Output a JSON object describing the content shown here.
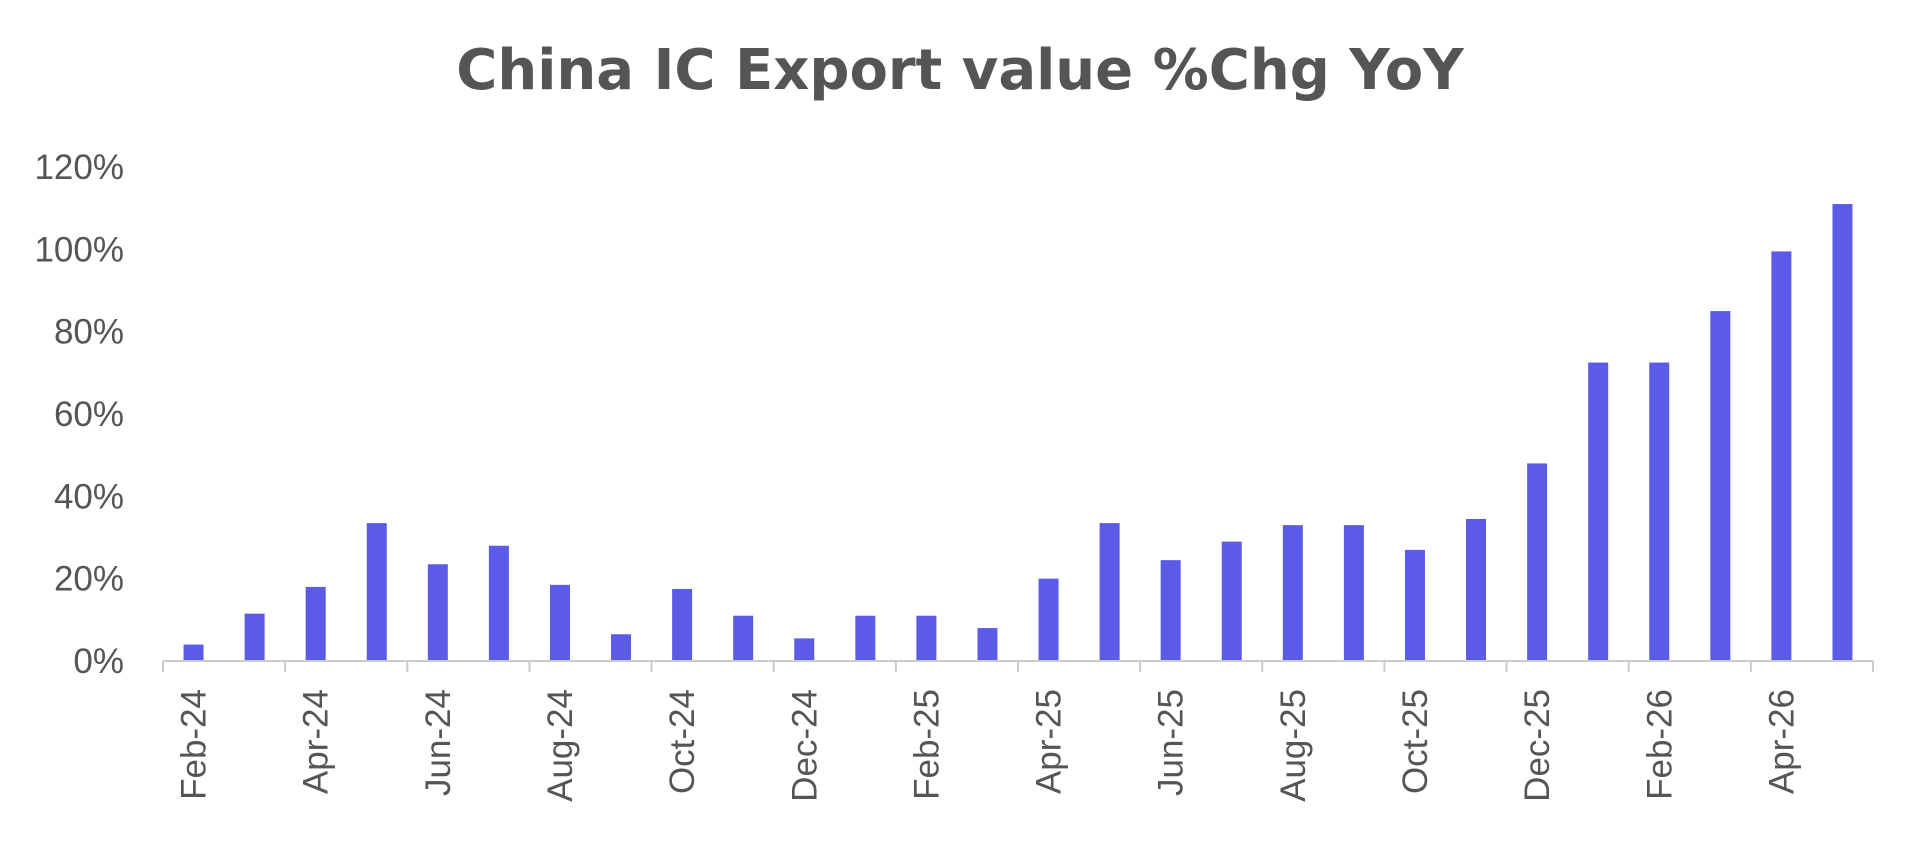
{
  "chart_data": {
    "type": "bar",
    "title": "China IC Export value %Chg YoY",
    "xlabel": "",
    "ylabel": "",
    "ylim": [
      0,
      120
    ],
    "yticks": [
      "0%",
      "20%",
      "40%",
      "60%",
      "80%",
      "100%",
      "120%"
    ],
    "ytick_values": [
      0,
      20,
      40,
      60,
      80,
      100,
      120
    ],
    "categories": [
      "Feb-24",
      "Mar-24",
      "Apr-24",
      "May-24",
      "Jun-24",
      "Jul-24",
      "Aug-24",
      "Sep-24",
      "Oct-24",
      "Nov-24",
      "Dec-24",
      "Jan-25",
      "Feb-25",
      "Mar-25",
      "Apr-25",
      "May-25",
      "Jun-25",
      "Jul-25",
      "Aug-25",
      "Sep-25",
      "Oct-25",
      "Nov-25",
      "Dec-25",
      "Jan-26",
      "Feb-26",
      "Mar-26",
      "Apr-26",
      "May-26"
    ],
    "xtick_labels": [
      "Feb-24",
      "Apr-24",
      "Jun-24",
      "Aug-24",
      "Oct-24",
      "Dec-24",
      "Feb-25",
      "Apr-25",
      "Jun-25",
      "Aug-25",
      "Oct-25",
      "Dec-25",
      "Feb-26",
      "Apr-26"
    ],
    "series": [
      {
        "values": [
          4,
          11.5,
          18,
          33.5,
          23.5,
          28,
          18.5,
          6.5,
          17.5,
          11,
          5.5,
          11,
          11,
          8,
          20,
          33.5,
          24.5,
          29,
          33,
          33,
          27,
          34.5,
          48,
          72.5,
          72.5,
          85,
          99.5,
          111
        ]
      }
    ],
    "bar_color": "#5b5be8",
    "axis_color": "#cccccc",
    "text_color": "#555558",
    "grid": false,
    "legend": "none"
  }
}
